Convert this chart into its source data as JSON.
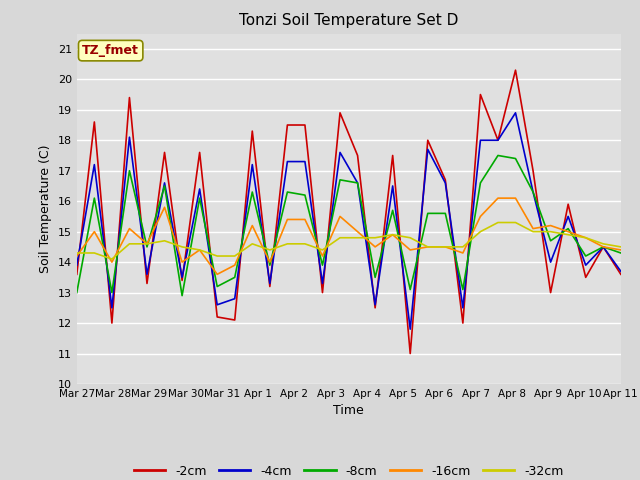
{
  "title": "Tonzi Soil Temperature Set D",
  "xlabel": "Time",
  "ylabel": "Soil Temperature (C)",
  "ylim": [
    10.0,
    21.5
  ],
  "yticks": [
    10.0,
    11.0,
    12.0,
    13.0,
    14.0,
    15.0,
    16.0,
    17.0,
    18.0,
    19.0,
    20.0,
    21.0
  ],
  "background_color": "#d8d8d8",
  "plot_bg_color": "#e0e0e0",
  "legend_label": "TZ_fmet",
  "x_labels": [
    "Mar 27",
    "Mar 28",
    "Mar 29",
    "Mar 30",
    "Mar 31",
    "Apr 1",
    "Apr 2",
    "Apr 3",
    "Apr 4",
    "Apr 5",
    "Apr 6",
    "Apr 7",
    "Apr 8",
    "Apr 9",
    "Apr 10",
    "Apr 11"
  ],
  "series": {
    "-2cm": {
      "color": "#cc0000",
      "linewidth": 1.2,
      "data": [
        13.6,
        18.6,
        12.0,
        19.4,
        13.3,
        17.6,
        13.4,
        17.6,
        12.2,
        12.1,
        18.3,
        13.2,
        18.5,
        18.5,
        13.0,
        18.9,
        17.5,
        12.5,
        17.5,
        11.0,
        18.0,
        16.7,
        12.0,
        19.5,
        18.0,
        20.3,
        17.0,
        13.0,
        15.9,
        13.5,
        14.5,
        13.6
      ]
    },
    "-4cm": {
      "color": "#0000cc",
      "linewidth": 1.2,
      "data": [
        13.9,
        17.2,
        12.5,
        18.1,
        13.6,
        16.6,
        13.5,
        16.4,
        12.6,
        12.8,
        17.2,
        13.3,
        17.3,
        17.3,
        13.3,
        17.6,
        16.6,
        12.6,
        16.5,
        11.8,
        17.7,
        16.6,
        12.5,
        18.0,
        18.0,
        18.9,
        16.3,
        14.0,
        15.5,
        13.9,
        14.5,
        13.7
      ]
    },
    "-8cm": {
      "color": "#00aa00",
      "linewidth": 1.2,
      "data": [
        13.0,
        16.1,
        13.0,
        17.0,
        14.5,
        16.5,
        12.9,
        16.1,
        13.2,
        13.5,
        16.3,
        13.9,
        16.3,
        16.2,
        13.9,
        16.7,
        16.6,
        13.5,
        15.7,
        13.1,
        15.6,
        15.6,
        13.1,
        16.6,
        17.5,
        17.4,
        16.3,
        14.7,
        15.1,
        14.2,
        14.5,
        14.3
      ]
    },
    "-16cm": {
      "color": "#ff8800",
      "linewidth": 1.2,
      "data": [
        14.2,
        15.0,
        14.0,
        15.1,
        14.6,
        15.8,
        14.0,
        14.4,
        13.6,
        13.9,
        15.2,
        14.0,
        15.4,
        15.4,
        14.2,
        15.5,
        15.0,
        14.5,
        14.9,
        14.4,
        14.5,
        14.5,
        14.3,
        15.5,
        16.1,
        16.1,
        15.1,
        15.2,
        15.0,
        14.8,
        14.5,
        14.4
      ]
    },
    "-32cm": {
      "color": "#cccc00",
      "linewidth": 1.2,
      "data": [
        14.3,
        14.3,
        14.1,
        14.6,
        14.6,
        14.7,
        14.5,
        14.4,
        14.2,
        14.2,
        14.6,
        14.4,
        14.6,
        14.6,
        14.4,
        14.8,
        14.8,
        14.8,
        14.9,
        14.8,
        14.5,
        14.5,
        14.5,
        15.0,
        15.3,
        15.3,
        15.0,
        15.0,
        14.9,
        14.8,
        14.6,
        14.5
      ]
    }
  }
}
